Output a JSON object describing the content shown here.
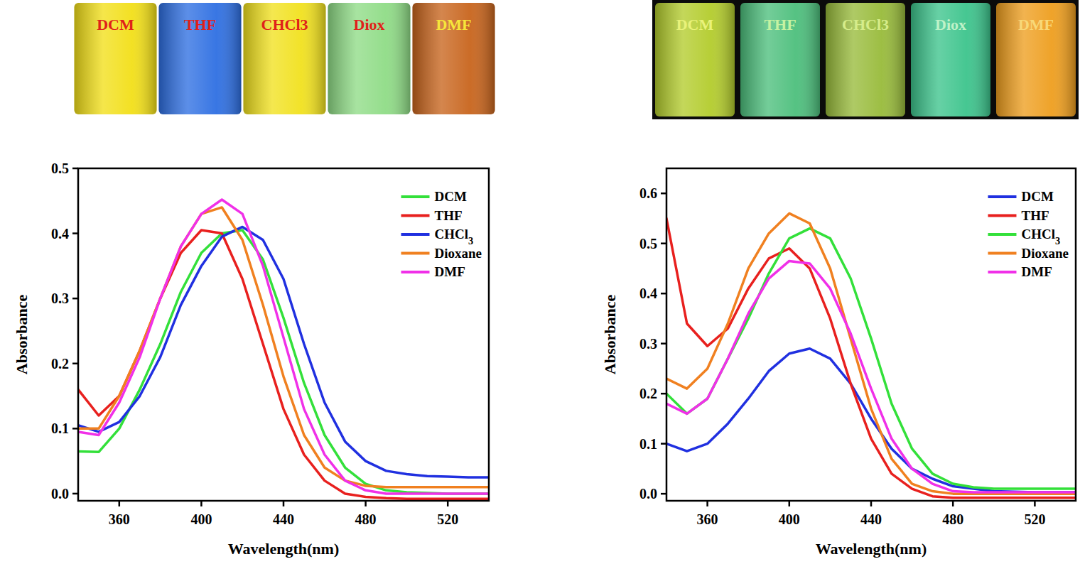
{
  "photo_strips": [
    {
      "vials": [
        {
          "label": "DCM",
          "color": "#f2df18",
          "label_color": "#e0201a"
        },
        {
          "label": "THF",
          "color": "#2e6fe2",
          "label_color": "#e0201a"
        },
        {
          "label": "CHCl3",
          "color": "#f1e11e",
          "label_color": "#e0201a"
        },
        {
          "label": "Diox",
          "color": "#8fdc86",
          "label_color": "#e0201a"
        },
        {
          "label": "DMF",
          "color": "#c8641c",
          "label_color": "#f6e63a"
        }
      ]
    },
    {
      "vials": [
        {
          "label": "DCM",
          "color": "#b3cc2c",
          "label_color": "#e9f27a"
        },
        {
          "label": "THF",
          "color": "#4cbf7c",
          "label_color": "#c6f2a2"
        },
        {
          "label": "CHCl3",
          "color": "#98bb3a",
          "label_color": "#d6ec8a"
        },
        {
          "label": "Diox",
          "color": "#3cc48c",
          "label_color": "#bff2c8"
        },
        {
          "label": "DMF",
          "color": "#ee9e1e",
          "label_color": "#f8d878"
        }
      ]
    }
  ],
  "chart_data": [
    {
      "type": "line",
      "x_label": "Wavelength(nm)",
      "y_label": "Absorbance",
      "x": [
        340,
        350,
        360,
        370,
        380,
        390,
        400,
        410,
        420,
        430,
        440,
        450,
        460,
        470,
        480,
        490,
        500,
        510,
        520,
        530,
        540
      ],
      "xlim": [
        340,
        540
      ],
      "ylim": [
        -0.011,
        0.5
      ],
      "xticks": [
        360,
        400,
        440,
        480,
        520
      ],
      "yticks": [
        {
          "value": 0,
          "label": "0.0"
        },
        {
          "value": 0.1,
          "label": "0.1"
        },
        {
          "value": 0.2,
          "label": "0.2"
        },
        {
          "value": 0.3,
          "label": "0.3"
        },
        {
          "value": 0.4,
          "label": "0.4"
        },
        {
          "value": 0.5,
          "label": "0.5"
        }
      ],
      "legend": "upper right",
      "grid": false,
      "series": [
        {
          "name": "DCM",
          "color": "#33e03a",
          "values": [
            0.065,
            0.064,
            0.1,
            0.16,
            0.23,
            0.31,
            0.37,
            0.4,
            0.405,
            0.36,
            0.27,
            0.17,
            0.09,
            0.04,
            0.015,
            0.005,
            0.002,
            0.001,
            0.0,
            0.0,
            0.0
          ]
        },
        {
          "name": "THF",
          "color": "#e8201e",
          "values": [
            0.16,
            0.12,
            0.15,
            0.22,
            0.3,
            0.37,
            0.405,
            0.4,
            0.33,
            0.23,
            0.13,
            0.06,
            0.02,
            0.0,
            -0.005,
            -0.007,
            -0.008,
            -0.008,
            -0.008,
            -0.008,
            -0.008
          ]
        },
        {
          "name": "CHCl3",
          "color": "#2030e0",
          "values": [
            0.105,
            0.095,
            0.11,
            0.15,
            0.21,
            0.29,
            0.35,
            0.395,
            0.41,
            0.39,
            0.33,
            0.23,
            0.14,
            0.08,
            0.05,
            0.035,
            0.03,
            0.027,
            0.026,
            0.025,
            0.025
          ]
        },
        {
          "name": "Dioxane",
          "color": "#f08020",
          "values": [
            0.1,
            0.1,
            0.15,
            0.22,
            0.3,
            0.38,
            0.43,
            0.44,
            0.39,
            0.29,
            0.18,
            0.09,
            0.04,
            0.02,
            0.012,
            0.01,
            0.01,
            0.01,
            0.01,
            0.01,
            0.01
          ]
        },
        {
          "name": "DMF",
          "color": "#f030e8",
          "values": [
            0.095,
            0.09,
            0.14,
            0.21,
            0.3,
            0.38,
            0.43,
            0.452,
            0.43,
            0.35,
            0.24,
            0.13,
            0.06,
            0.02,
            0.005,
            0.0,
            0.0,
            0.0,
            0.0,
            0.0,
            0.0
          ]
        }
      ]
    },
    {
      "type": "line",
      "x_label": "Wavelength(nm)",
      "y_label": "Absorbance",
      "x": [
        340,
        350,
        360,
        370,
        380,
        390,
        400,
        410,
        420,
        430,
        440,
        450,
        460,
        470,
        480,
        490,
        500,
        510,
        520,
        530,
        540
      ],
      "xlim": [
        340,
        540
      ],
      "ylim": [
        -0.014,
        0.65
      ],
      "xticks": [
        360,
        400,
        440,
        480,
        520
      ],
      "yticks": [
        {
          "value": 0,
          "label": "0.0"
        },
        {
          "value": 0.1,
          "label": "0.1"
        },
        {
          "value": 0.2,
          "label": "0.2"
        },
        {
          "value": 0.3,
          "label": "0.3"
        },
        {
          "value": 0.4,
          "label": "0.4"
        },
        {
          "value": 0.5,
          "label": "0.5"
        },
        {
          "value": 0.6,
          "label": "0.6"
        }
      ],
      "legend": "upper right",
      "grid": false,
      "series": [
        {
          "name": "DCM",
          "color": "#2030e0",
          "values": [
            0.1,
            0.085,
            0.1,
            0.14,
            0.19,
            0.245,
            0.28,
            0.29,
            0.27,
            0.22,
            0.15,
            0.09,
            0.05,
            0.03,
            0.015,
            0.01,
            0.005,
            0.004,
            0.003,
            0.003,
            0.003
          ]
        },
        {
          "name": "THF",
          "color": "#e8201e",
          "values": [
            0.55,
            0.34,
            0.295,
            0.33,
            0.41,
            0.47,
            0.49,
            0.45,
            0.35,
            0.22,
            0.11,
            0.04,
            0.01,
            -0.005,
            -0.008,
            -0.008,
            -0.008,
            -0.008,
            -0.008,
            -0.008,
            -0.008
          ]
        },
        {
          "name": "CHCl3",
          "color": "#33e03a",
          "values": [
            0.2,
            0.16,
            0.19,
            0.27,
            0.35,
            0.44,
            0.51,
            0.53,
            0.51,
            0.43,
            0.31,
            0.18,
            0.09,
            0.04,
            0.02,
            0.013,
            0.01,
            0.01,
            0.01,
            0.01,
            0.01
          ]
        },
        {
          "name": "Dioxane",
          "color": "#f08020",
          "values": [
            0.23,
            0.21,
            0.25,
            0.34,
            0.45,
            0.52,
            0.56,
            0.54,
            0.45,
            0.31,
            0.17,
            0.07,
            0.02,
            0.005,
            0.0,
            0.0,
            0.0,
            0.0,
            0.0,
            0.0,
            0.0
          ]
        },
        {
          "name": "DMF",
          "color": "#f030e8",
          "values": [
            0.18,
            0.16,
            0.19,
            0.27,
            0.36,
            0.43,
            0.465,
            0.46,
            0.41,
            0.32,
            0.21,
            0.11,
            0.05,
            0.02,
            0.005,
            0.003,
            0.003,
            0.003,
            0.003,
            0.003,
            0.003
          ]
        }
      ]
    }
  ]
}
